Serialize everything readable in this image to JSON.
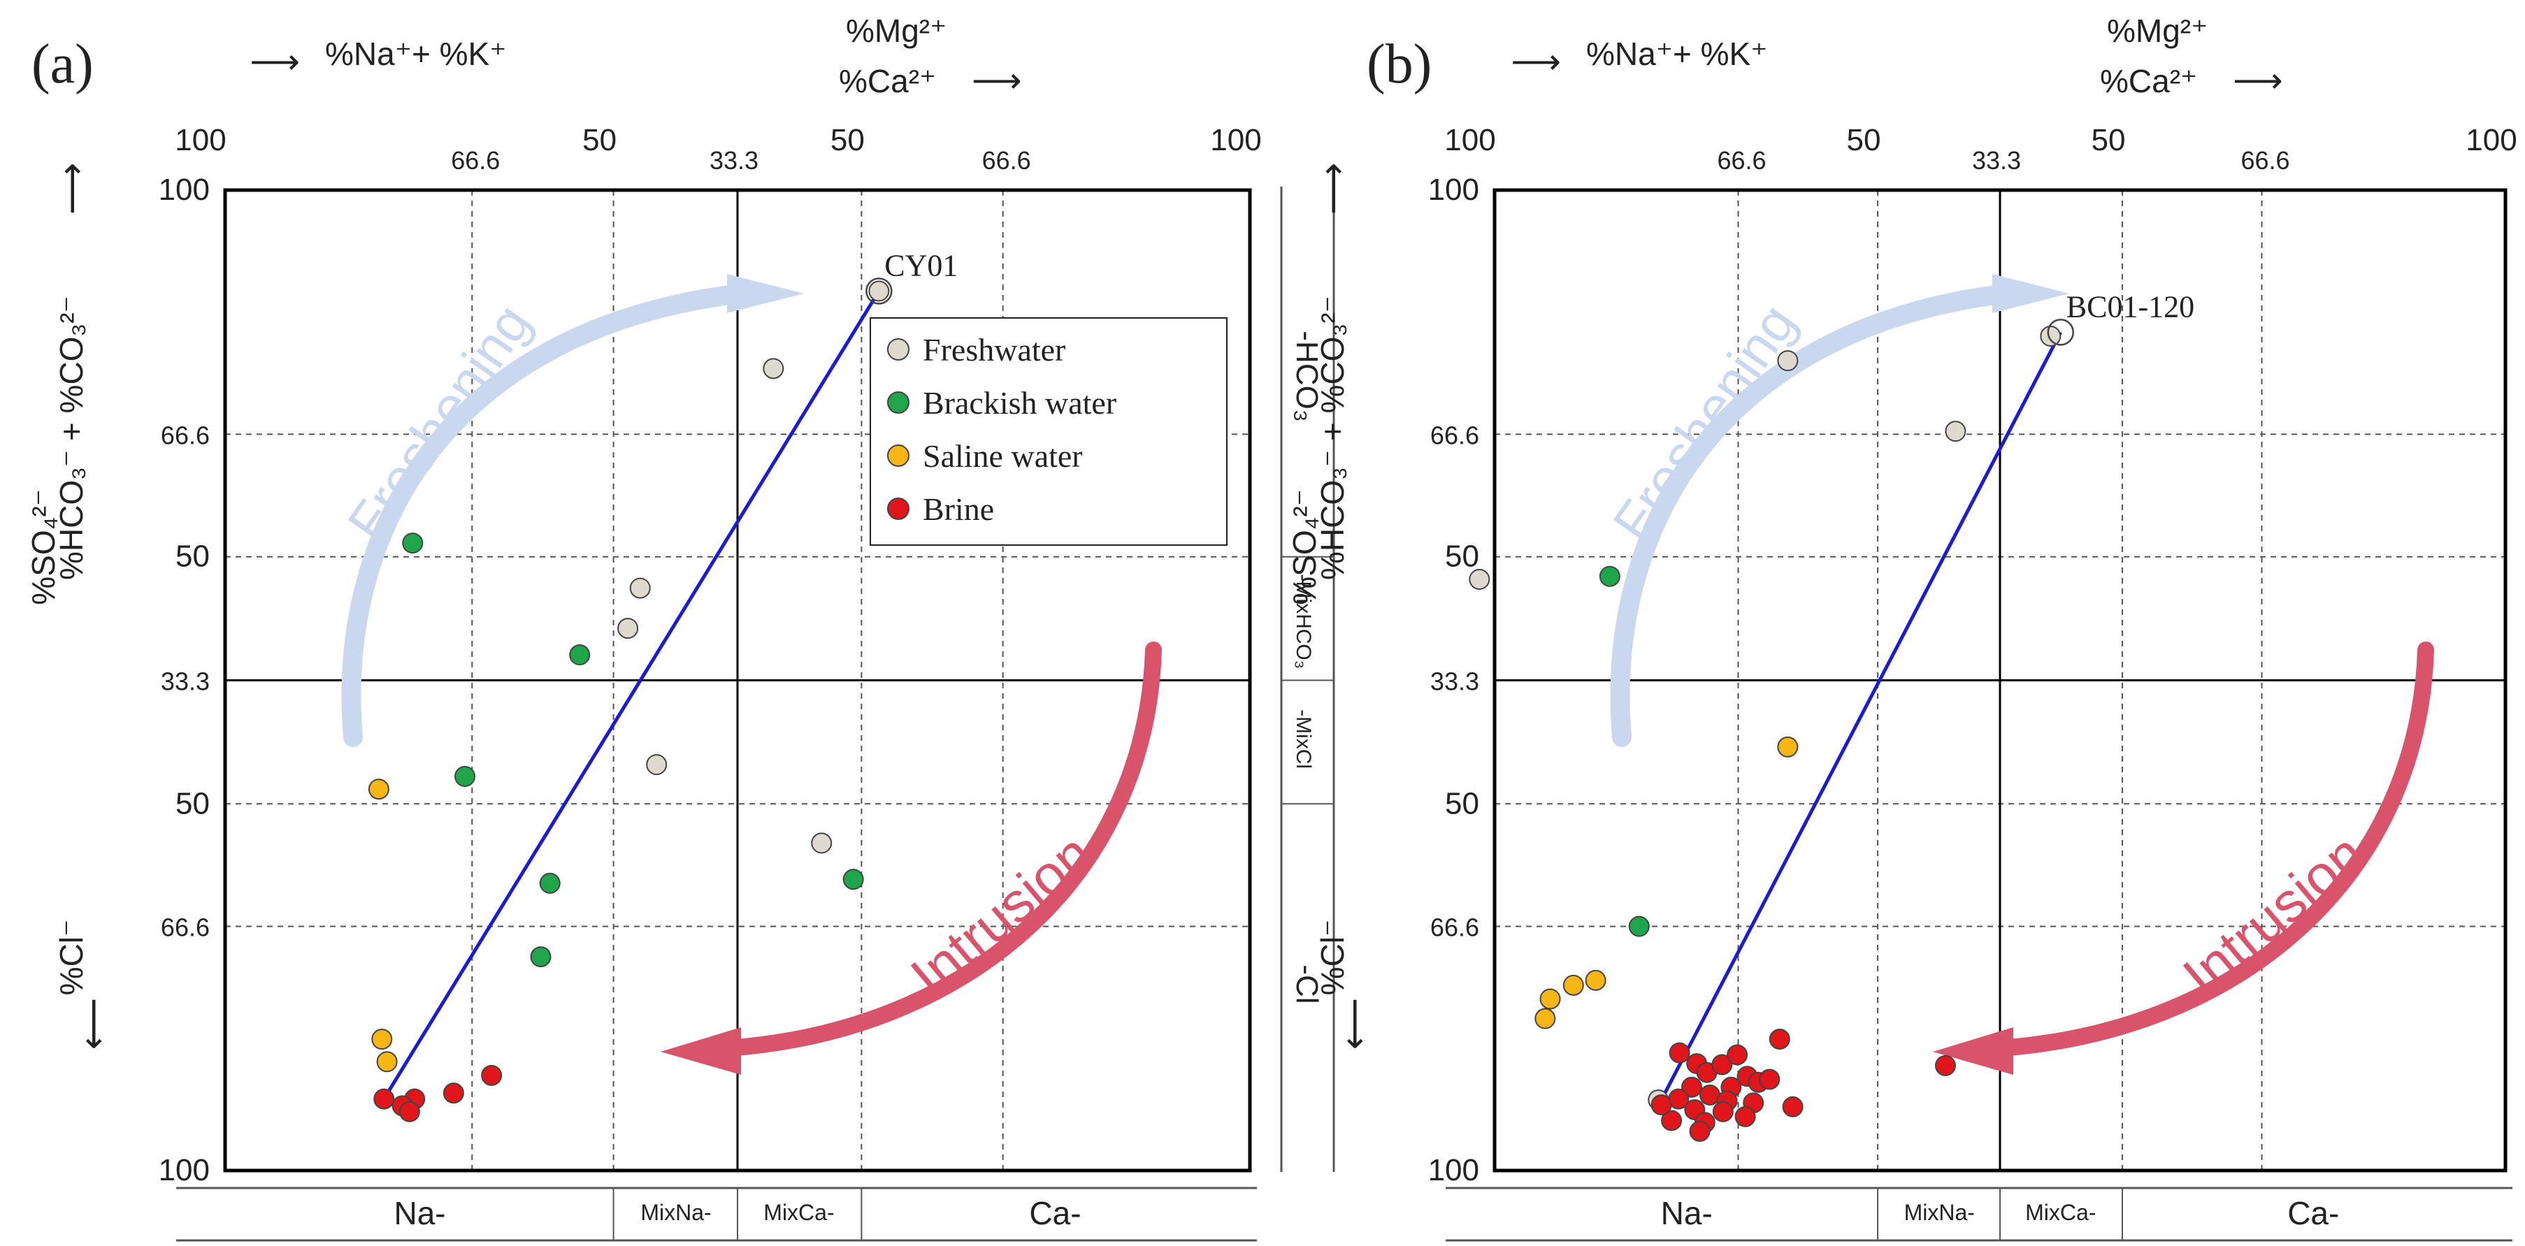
{
  "figure": {
    "colors": {
      "frame": "#000000",
      "grid": "#555555",
      "subframe": "#555555",
      "trend_line": "#1a1adc",
      "freshening_arrow": "#c9d8ee",
      "intrusion_arrow": "#d9536a",
      "marker_edge": "#444444"
    },
    "header": {
      "na_k": "%Na⁺+ %K⁺",
      "mg": "%Mg²⁺",
      "ca": "%Ca²⁺",
      "arrow_left": "⟵",
      "arrow_right": "⟶"
    },
    "y_axis": {
      "so4": "%SO₄²⁻",
      "hco3_co3": "%HCO₃⁻ + %CO₃²⁻",
      "cl": "%Cl⁻",
      "arrow_up": "⟶",
      "arrow_down": "⟶"
    },
    "bottom_types": [
      {
        "label": "Na-"
      },
      {
        "label": "MixNa-"
      },
      {
        "label": "MixCa-"
      },
      {
        "label": "Ca-"
      }
    ],
    "right_types": [
      {
        "label": "-HCO₃"
      },
      {
        "label": "-MixHCO₃"
      },
      {
        "label": "-MixCl"
      },
      {
        "label": "-Cl"
      }
    ]
  },
  "chart_data": [
    {
      "type": "scatter",
      "panel_label": "(a)",
      "x_ticks": [
        "100",
        "66.6",
        "50",
        "33.3",
        "50",
        "66.6",
        "100"
      ],
      "y_ticks": [
        "100",
        "66.6",
        "50",
        "33.3",
        "50",
        "66.6",
        "100"
      ],
      "xlim": [
        0,
        100
      ],
      "ylim": [
        0,
        100
      ],
      "legend": {
        "placement": "top-right",
        "entries": [
          {
            "label": "Freshwater",
            "color": "#dedad0"
          },
          {
            "label": "Brackish water",
            "color": "#1fa64a"
          },
          {
            "label": "Saline water",
            "color": "#f7b614"
          },
          {
            "label": "Brine",
            "color": "#e0161b"
          }
        ]
      },
      "trend_line": {
        "from": [
          15.5,
          92.7
        ],
        "to": [
          63.8,
          10.3
        ],
        "label": "CY01"
      },
      "arrows": {
        "freshening": "Freshening",
        "intrusion": "Intrusion"
      },
      "series": [
        {
          "name": "Freshwater",
          "color": "#dedad0",
          "points": [
            [
              63.8,
              10.3
            ],
            [
              53.5,
              18.2
            ],
            [
              40.5,
              40.6
            ],
            [
              39.3,
              44.7
            ],
            [
              42.1,
              58.6
            ],
            [
              58.2,
              66.6
            ]
          ]
        },
        {
          "name": "Brackish water",
          "color": "#1fa64a",
          "points": [
            [
              18.3,
              36.0
            ],
            [
              34.6,
              47.4
            ],
            [
              23.4,
              59.8
            ],
            [
              31.7,
              70.7
            ],
            [
              61.3,
              70.3
            ],
            [
              30.8,
              78.2
            ]
          ]
        },
        {
          "name": "Saline water",
          "color": "#f7b614",
          "points": [
            [
              15.0,
              61.1
            ],
            [
              15.3,
              86.6
            ],
            [
              15.8,
              88.9
            ]
          ],
          "extra_labels": []
        },
        {
          "name": "Brine",
          "color": "#e0161b",
          "points": [
            [
              15.5,
              92.7
            ],
            [
              18.5,
              92.7
            ],
            [
              17.3,
              93.4
            ],
            [
              18.0,
              94.0
            ],
            [
              22.3,
              92.1
            ],
            [
              26.0,
              90.3
            ]
          ]
        }
      ]
    },
    {
      "type": "scatter",
      "panel_label": "(b)",
      "x_ticks": [
        "100",
        "66.6",
        "50",
        "33.3",
        "50",
        "66.6",
        "100"
      ],
      "y_ticks": [
        "100",
        "66.6",
        "50",
        "33.3",
        "50",
        "66.6",
        "100"
      ],
      "xlim": [
        0,
        100
      ],
      "ylim": [
        0,
        100
      ],
      "trend_line": {
        "from": [
          16.8,
          92.2
        ],
        "to": [
          56.0,
          14.5
        ],
        "label": "BC01-120"
      },
      "arrows": {
        "freshening": "Freshening",
        "intrusion": "Intrusion"
      },
      "series": [
        {
          "name": "Freshwater",
          "color": "#dedad0",
          "points": [
            [
              55.0,
              14.9
            ],
            [
              29.0,
              17.4
            ],
            [
              45.6,
              24.6
            ],
            [
              -1.5,
              39.7
            ],
            [
              16.2,
              92.8
            ]
          ]
        },
        {
          "name": "Brackish water",
          "color": "#1fa64a",
          "points": [
            [
              11.4,
              39.4
            ],
            [
              14.3,
              75.1
            ]
          ]
        },
        {
          "name": "Saline water",
          "color": "#f7b614",
          "points": [
            [
              29.0,
              56.8
            ],
            [
              10.0,
              80.6
            ],
            [
              7.8,
              81.1
            ],
            [
              5.5,
              82.5
            ],
            [
              5.0,
              84.5
            ]
          ]
        },
        {
          "name": "Brine",
          "color": "#e0161b",
          "points": [
            [
              18.3,
              88.0
            ],
            [
              20.0,
              89.1
            ],
            [
              21.0,
              90.0
            ],
            [
              22.5,
              89.2
            ],
            [
              24.0,
              88.2
            ],
            [
              25.0,
              90.4
            ],
            [
              26.1,
              91.0
            ],
            [
              27.2,
              90.7
            ],
            [
              23.4,
              91.5
            ],
            [
              19.5,
              91.5
            ],
            [
              21.3,
              92.3
            ],
            [
              18.2,
              92.7
            ],
            [
              23.0,
              92.9
            ],
            [
              25.6,
              93.1
            ],
            [
              19.8,
              93.8
            ],
            [
              22.6,
              94.0
            ],
            [
              24.8,
              94.5
            ],
            [
              17.5,
              94.9
            ],
            [
              20.8,
              95.1
            ],
            [
              16.5,
              93.3
            ],
            [
              20.3,
              96.0
            ],
            [
              28.2,
              86.6
            ],
            [
              29.5,
              93.5
            ],
            [
              44.6,
              89.3
            ]
          ]
        }
      ]
    }
  ]
}
